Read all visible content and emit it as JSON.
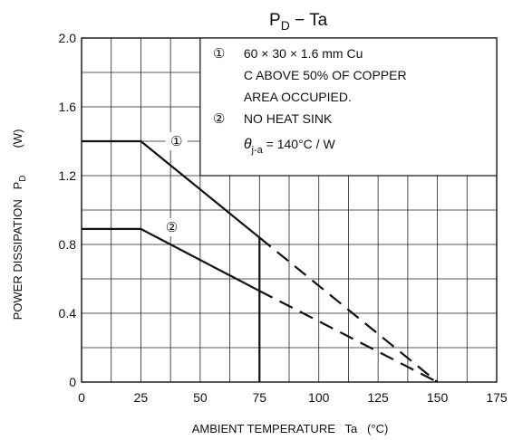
{
  "chart_data": {
    "type": "line",
    "title": "PD − Ta",
    "title_parts": {
      "main": "P",
      "sub": "D",
      "rest": " − Ta"
    },
    "xlabel": "AMBIENT TEMPERATURE   Ta   (°C)",
    "ylabel_main": "POWER DISSIPATION   P",
    "ylabel_sub": "D",
    "ylabel_unit": "(W)",
    "xlim": [
      0,
      175
    ],
    "ylim": [
      0,
      2.0
    ],
    "x_ticks": [
      0,
      25,
      50,
      75,
      100,
      125,
      150,
      175
    ],
    "x_tick_labels": [
      "0",
      "25",
      "50",
      "75",
      "100",
      "125",
      "150",
      "175"
    ],
    "y_ticks": [
      0,
      0.4,
      0.8,
      1.2,
      1.6,
      2.0
    ],
    "y_tick_labels": [
      "0",
      "0.4",
      "0.8",
      "1.2",
      "1.6",
      "2.0"
    ],
    "x_grid_step": 12.5,
    "y_grid_step": 0.2,
    "grid": true,
    "series": [
      {
        "name": "①",
        "solid": [
          [
            0,
            1.4
          ],
          [
            25,
            1.4
          ],
          [
            75,
            0.84
          ]
        ],
        "dashed": [
          [
            75,
            0.84
          ],
          [
            150,
            0
          ]
        ],
        "label_at": [
          40,
          1.4
        ]
      },
      {
        "name": "②",
        "solid": [
          [
            0,
            0.89
          ],
          [
            25,
            0.89
          ],
          [
            75,
            0.53
          ]
        ],
        "dashed": [
          [
            75,
            0.53
          ],
          [
            150,
            0
          ]
        ],
        "label_at": [
          38,
          0.9
        ]
      }
    ],
    "vertical_line": {
      "x": 75,
      "y_from": 0,
      "y_to": 0.84
    },
    "legend_box": {
      "x_from": 50,
      "x_to": 175,
      "y_from": 1.2,
      "y_to": 2.0,
      "items": [
        {
          "marker": "①",
          "lines": [
            "60 × 30 × 1.6 mm Cu",
            "C ABOVE 50% OF COPPER",
            "AREA OCCUPIED."
          ]
        },
        {
          "marker": "②",
          "lines": [
            "NO HEAT SINK"
          ]
        }
      ],
      "theta": {
        "symbol": "θ",
        "sub": "j-a",
        "rest": " = 140°C / W"
      }
    }
  }
}
